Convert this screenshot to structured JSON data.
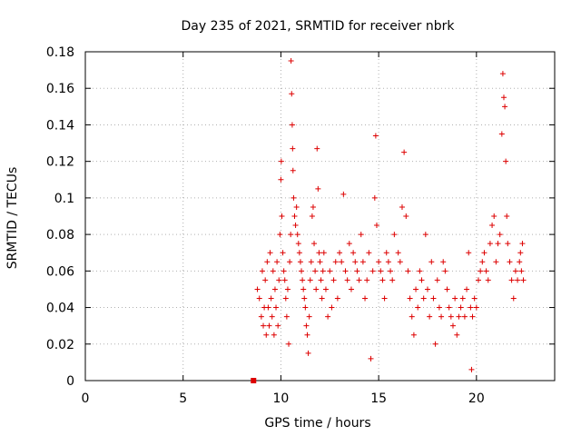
{
  "chart_data": {
    "type": "scatter",
    "title": "Day 235 of 2021, SRMTID for receiver nbrk",
    "xlabel": "GPS time / hours",
    "ylabel": "SRMTID / TECUs",
    "xlim": [
      0,
      24
    ],
    "ylim": [
      0,
      0.18
    ],
    "xticks": [
      0,
      5,
      10,
      15,
      20
    ],
    "yticks": [
      0,
      0.02,
      0.04,
      0.06,
      0.08,
      0.1,
      0.12,
      0.14,
      0.16,
      0.18
    ],
    "xtick_labels": [
      "0",
      "5",
      "10",
      "15",
      "20"
    ],
    "ytick_labels": [
      "0",
      "0.02",
      "0.04",
      "0.06",
      "0.08",
      "0.1",
      "0.12",
      "0.14",
      "0.16",
      "0.18"
    ],
    "grid": true,
    "marker": "+",
    "color": "#dd0000",
    "marker_square": {
      "x": 8.6,
      "y": 0.0
    },
    "series": [
      {
        "name": "SRMTID",
        "points": [
          [
            8.8,
            0.05
          ],
          [
            8.9,
            0.045
          ],
          [
            9.0,
            0.035
          ],
          [
            9.05,
            0.06
          ],
          [
            9.1,
            0.03
          ],
          [
            9.15,
            0.04
          ],
          [
            9.2,
            0.055
          ],
          [
            9.25,
            0.025
          ],
          [
            9.3,
            0.065
          ],
          [
            9.35,
            0.04
          ],
          [
            9.4,
            0.03
          ],
          [
            9.45,
            0.07
          ],
          [
            9.5,
            0.045
          ],
          [
            9.55,
            0.035
          ],
          [
            9.6,
            0.06
          ],
          [
            9.65,
            0.025
          ],
          [
            9.7,
            0.05
          ],
          [
            9.75,
            0.04
          ],
          [
            9.8,
            0.065
          ],
          [
            9.85,
            0.03
          ],
          [
            9.9,
            0.055
          ],
          [
            9.95,
            0.08
          ],
          [
            10.0,
            0.11
          ],
          [
            10.02,
            0.12
          ],
          [
            10.05,
            0.09
          ],
          [
            10.1,
            0.07
          ],
          [
            10.15,
            0.06
          ],
          [
            10.2,
            0.055
          ],
          [
            10.25,
            0.045
          ],
          [
            10.3,
            0.035
          ],
          [
            10.35,
            0.05
          ],
          [
            10.4,
            0.02
          ],
          [
            10.45,
            0.065
          ],
          [
            10.5,
            0.08
          ],
          [
            10.52,
            0.175
          ],
          [
            10.55,
            0.157
          ],
          [
            10.58,
            0.14
          ],
          [
            10.6,
            0.127
          ],
          [
            10.62,
            0.115
          ],
          [
            10.65,
            0.1
          ],
          [
            10.7,
            0.09
          ],
          [
            10.75,
            0.085
          ],
          [
            10.8,
            0.095
          ],
          [
            10.85,
            0.08
          ],
          [
            10.9,
            0.075
          ],
          [
            10.95,
            0.07
          ],
          [
            11.0,
            0.065
          ],
          [
            11.05,
            0.06
          ],
          [
            11.1,
            0.055
          ],
          [
            11.15,
            0.05
          ],
          [
            11.2,
            0.045
          ],
          [
            11.25,
            0.04
          ],
          [
            11.3,
            0.03
          ],
          [
            11.35,
            0.025
          ],
          [
            11.4,
            0.015
          ],
          [
            11.45,
            0.035
          ],
          [
            11.5,
            0.055
          ],
          [
            11.55,
            0.065
          ],
          [
            11.6,
            0.09
          ],
          [
            11.65,
            0.095
          ],
          [
            11.7,
            0.075
          ],
          [
            11.75,
            0.06
          ],
          [
            11.8,
            0.05
          ],
          [
            11.85,
            0.127
          ],
          [
            11.9,
            0.105
          ],
          [
            11.95,
            0.07
          ],
          [
            12.0,
            0.065
          ],
          [
            12.05,
            0.055
          ],
          [
            12.1,
            0.045
          ],
          [
            12.15,
            0.06
          ],
          [
            12.2,
            0.07
          ],
          [
            12.3,
            0.05
          ],
          [
            12.4,
            0.035
          ],
          [
            12.5,
            0.06
          ],
          [
            12.6,
            0.04
          ],
          [
            12.7,
            0.055
          ],
          [
            12.8,
            0.065
          ],
          [
            12.9,
            0.045
          ],
          [
            13.0,
            0.07
          ],
          [
            13.1,
            0.065
          ],
          [
            13.2,
            0.102
          ],
          [
            13.3,
            0.06
          ],
          [
            13.4,
            0.055
          ],
          [
            13.5,
            0.075
          ],
          [
            13.6,
            0.05
          ],
          [
            13.7,
            0.07
          ],
          [
            13.8,
            0.065
          ],
          [
            13.9,
            0.06
          ],
          [
            14.0,
            0.055
          ],
          [
            14.1,
            0.08
          ],
          [
            14.2,
            0.065
          ],
          [
            14.3,
            0.045
          ],
          [
            14.4,
            0.055
          ],
          [
            14.5,
            0.07
          ],
          [
            14.6,
            0.012
          ],
          [
            14.7,
            0.06
          ],
          [
            14.8,
            0.1
          ],
          [
            14.85,
            0.134
          ],
          [
            14.9,
            0.085
          ],
          [
            15.0,
            0.065
          ],
          [
            15.1,
            0.06
          ],
          [
            15.2,
            0.055
          ],
          [
            15.3,
            0.045
          ],
          [
            15.4,
            0.07
          ],
          [
            15.5,
            0.065
          ],
          [
            15.6,
            0.06
          ],
          [
            15.7,
            0.055
          ],
          [
            15.8,
            0.08
          ],
          [
            16.0,
            0.07
          ],
          [
            16.1,
            0.065
          ],
          [
            16.2,
            0.095
          ],
          [
            16.3,
            0.125
          ],
          [
            16.4,
            0.09
          ],
          [
            16.5,
            0.06
          ],
          [
            16.6,
            0.045
          ],
          [
            16.7,
            0.035
          ],
          [
            16.8,
            0.025
          ],
          [
            16.9,
            0.05
          ],
          [
            17.0,
            0.04
          ],
          [
            17.1,
            0.06
          ],
          [
            17.2,
            0.055
          ],
          [
            17.3,
            0.045
          ],
          [
            17.4,
            0.08
          ],
          [
            17.5,
            0.05
          ],
          [
            17.6,
            0.035
          ],
          [
            17.7,
            0.065
          ],
          [
            17.8,
            0.045
          ],
          [
            17.9,
            0.02
          ],
          [
            18.0,
            0.055
          ],
          [
            18.1,
            0.04
          ],
          [
            18.2,
            0.035
          ],
          [
            18.3,
            0.065
          ],
          [
            18.4,
            0.06
          ],
          [
            18.5,
            0.05
          ],
          [
            18.6,
            0.04
          ],
          [
            18.7,
            0.035
          ],
          [
            18.8,
            0.03
          ],
          [
            18.9,
            0.045
          ],
          [
            19.0,
            0.025
          ],
          [
            19.1,
            0.035
          ],
          [
            19.2,
            0.04
          ],
          [
            19.3,
            0.045
          ],
          [
            19.4,
            0.035
          ],
          [
            19.5,
            0.05
          ],
          [
            19.6,
            0.07
          ],
          [
            19.7,
            0.04
          ],
          [
            19.75,
            0.006
          ],
          [
            19.8,
            0.035
          ],
          [
            19.9,
            0.045
          ],
          [
            20.0,
            0.04
          ],
          [
            20.1,
            0.055
          ],
          [
            20.2,
            0.06
          ],
          [
            20.3,
            0.065
          ],
          [
            20.4,
            0.07
          ],
          [
            20.5,
            0.06
          ],
          [
            20.6,
            0.055
          ],
          [
            20.7,
            0.075
          ],
          [
            20.8,
            0.085
          ],
          [
            20.9,
            0.09
          ],
          [
            21.0,
            0.065
          ],
          [
            21.1,
            0.075
          ],
          [
            21.2,
            0.08
          ],
          [
            21.3,
            0.135
          ],
          [
            21.35,
            0.168
          ],
          [
            21.4,
            0.155
          ],
          [
            21.45,
            0.15
          ],
          [
            21.5,
            0.12
          ],
          [
            21.55,
            0.09
          ],
          [
            21.6,
            0.075
          ],
          [
            21.7,
            0.065
          ],
          [
            21.8,
            0.055
          ],
          [
            21.9,
            0.045
          ],
          [
            22.0,
            0.06
          ],
          [
            22.1,
            0.055
          ],
          [
            22.2,
            0.065
          ],
          [
            22.25,
            0.07
          ],
          [
            22.3,
            0.06
          ],
          [
            22.35,
            0.075
          ],
          [
            22.4,
            0.055
          ]
        ]
      }
    ]
  }
}
